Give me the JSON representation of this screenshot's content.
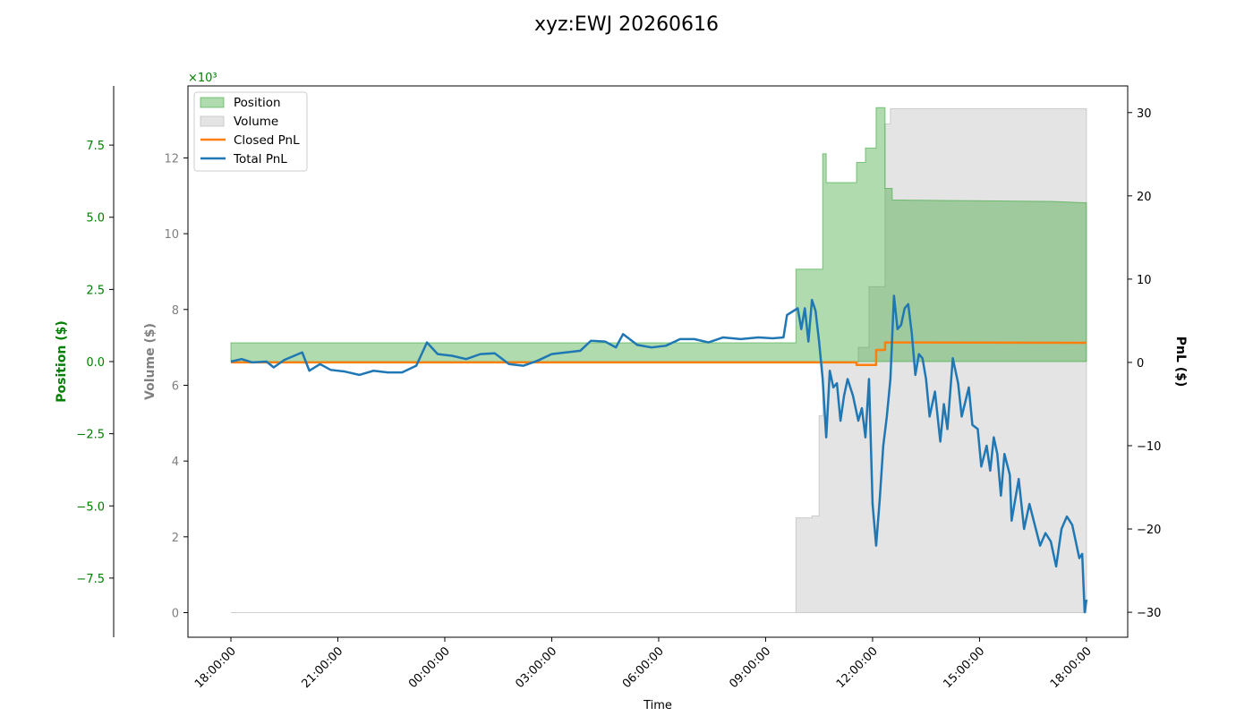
{
  "title": "xyz:EWJ 20260616",
  "colors": {
    "position": "#008000",
    "position_fill": "#2ca02c",
    "volume": "#808080",
    "volume_fill": "#bbbbbb",
    "closed_pnl": "#ff7f0e",
    "total_pnl": "#1f77b4"
  },
  "chart_data": {
    "type": "area",
    "xlabel": "Time",
    "x_ticks": [
      "18:00:00",
      "21:00:00",
      "00:00:00",
      "03:00:00",
      "06:00:00",
      "09:00:00",
      "12:00:00",
      "15:00:00",
      "18:00:00"
    ],
    "x_range_hours": [
      -1.2,
      25.2
    ],
    "legend": {
      "placement": "top-left",
      "entries": [
        "Position",
        "Volume",
        "Closed PnL",
        "Total PnL"
      ]
    },
    "axes": {
      "position": {
        "label": "Position ($)",
        "multiplier": "×10³",
        "range": [
          -9.55,
          9.55
        ],
        "ticks": [
          -7.5,
          -5.0,
          -2.5,
          0.0,
          2.5,
          5.0,
          7.5
        ],
        "tick_labels": [
          "−7.5",
          "−5.0",
          "−2.5",
          "0.0",
          "2.5",
          "5.0",
          "7.5"
        ]
      },
      "volume": {
        "label": "Volume ($)",
        "multiplier": "×10³",
        "range": [
          -0.65,
          13.9
        ],
        "ticks": [
          0,
          2,
          4,
          6,
          8,
          10,
          12
        ],
        "tick_labels": [
          "0",
          "2",
          "4",
          "6",
          "8",
          "10",
          "12"
        ]
      },
      "pnl": {
        "label": "PnL ($)",
        "range": [
          -33.0,
          33.2
        ],
        "ticks": [
          -30,
          -20,
          -10,
          0,
          10,
          20,
          30
        ],
        "tick_labels": [
          "−30",
          "−20",
          "−10",
          "0",
          "10",
          "20",
          "30"
        ]
      }
    },
    "series": [
      {
        "name": "Position",
        "kind": "step-area",
        "axis": "position",
        "points": [
          [
            0.0,
            0.65
          ],
          [
            15.85,
            0.65
          ],
          [
            15.85,
            3.2
          ],
          [
            16.6,
            3.2
          ],
          [
            16.6,
            7.2
          ],
          [
            16.7,
            7.2
          ],
          [
            16.7,
            6.2
          ],
          [
            17.55,
            6.2
          ],
          [
            17.55,
            6.9
          ],
          [
            17.8,
            6.9
          ],
          [
            17.8,
            7.4
          ],
          [
            18.1,
            7.4
          ],
          [
            18.1,
            8.8
          ],
          [
            18.35,
            8.8
          ],
          [
            18.35,
            6.0
          ],
          [
            18.55,
            6.0
          ],
          [
            18.55,
            5.6
          ],
          [
            23.0,
            5.55
          ],
          [
            24.0,
            5.5
          ],
          [
            24.0,
            0.0
          ]
        ]
      },
      {
        "name": "Volume",
        "kind": "step-area",
        "axis": "volume",
        "points": [
          [
            0.0,
            0.0
          ],
          [
            15.85,
            0.0
          ],
          [
            15.85,
            2.5
          ],
          [
            16.3,
            2.5
          ],
          [
            16.3,
            2.55
          ],
          [
            16.5,
            2.55
          ],
          [
            16.5,
            5.2
          ],
          [
            16.6,
            5.2
          ],
          [
            16.6,
            6.6
          ],
          [
            17.6,
            6.6
          ],
          [
            17.6,
            7.0
          ],
          [
            17.9,
            7.0
          ],
          [
            17.9,
            8.6
          ],
          [
            18.35,
            8.6
          ],
          [
            18.35,
            12.9
          ],
          [
            18.5,
            12.9
          ],
          [
            18.5,
            13.3
          ],
          [
            24.0,
            13.3
          ],
          [
            24.0,
            0.0
          ]
        ]
      },
      {
        "name": "Closed PnL",
        "kind": "line",
        "axis": "pnl",
        "points": [
          [
            0.0,
            0.0
          ],
          [
            17.55,
            0.0
          ],
          [
            17.55,
            -0.3
          ],
          [
            18.1,
            -0.3
          ],
          [
            18.1,
            1.5
          ],
          [
            18.35,
            1.5
          ],
          [
            18.35,
            2.4
          ],
          [
            19.5,
            2.4
          ],
          [
            24.0,
            2.35
          ]
        ]
      },
      {
        "name": "Total PnL",
        "kind": "line",
        "axis": "pnl",
        "points": [
          [
            0.0,
            0.1
          ],
          [
            0.3,
            0.4
          ],
          [
            0.6,
            0.0
          ],
          [
            1.0,
            0.1
          ],
          [
            1.2,
            -0.6
          ],
          [
            1.5,
            0.3
          ],
          [
            2.0,
            1.2
          ],
          [
            2.2,
            -1.0
          ],
          [
            2.5,
            -0.2
          ],
          [
            2.8,
            -0.9
          ],
          [
            3.2,
            -1.1
          ],
          [
            3.6,
            -1.5
          ],
          [
            4.0,
            -1.0
          ],
          [
            4.4,
            -1.2
          ],
          [
            4.8,
            -1.2
          ],
          [
            5.2,
            -0.4
          ],
          [
            5.5,
            2.4
          ],
          [
            5.8,
            1.0
          ],
          [
            6.2,
            0.8
          ],
          [
            6.6,
            0.4
          ],
          [
            7.0,
            1.0
          ],
          [
            7.4,
            1.1
          ],
          [
            7.8,
            -0.2
          ],
          [
            8.2,
            -0.4
          ],
          [
            8.6,
            0.2
          ],
          [
            9.0,
            1.0
          ],
          [
            9.4,
            1.2
          ],
          [
            9.8,
            1.4
          ],
          [
            10.1,
            2.6
          ],
          [
            10.5,
            2.5
          ],
          [
            10.8,
            1.8
          ],
          [
            11.0,
            3.4
          ],
          [
            11.4,
            2.1
          ],
          [
            11.8,
            1.8
          ],
          [
            12.2,
            2.0
          ],
          [
            12.6,
            2.8
          ],
          [
            13.0,
            2.8
          ],
          [
            13.4,
            2.4
          ],
          [
            13.8,
            3.0
          ],
          [
            14.3,
            2.8
          ],
          [
            14.8,
            3.0
          ],
          [
            15.2,
            2.9
          ],
          [
            15.5,
            3.0
          ],
          [
            15.6,
            5.7
          ],
          [
            15.9,
            6.5
          ],
          [
            16.0,
            4.0
          ],
          [
            16.1,
            6.5
          ],
          [
            16.2,
            2.5
          ],
          [
            16.3,
            7.5
          ],
          [
            16.4,
            6.2
          ],
          [
            16.5,
            2.5
          ],
          [
            16.6,
            -2.0
          ],
          [
            16.7,
            -9.0
          ],
          [
            16.8,
            -1.0
          ],
          [
            16.9,
            -3.0
          ],
          [
            17.0,
            -2.5
          ],
          [
            17.1,
            -7.0
          ],
          [
            17.2,
            -4.0
          ],
          [
            17.3,
            -2.0
          ],
          [
            17.45,
            -4.0
          ],
          [
            17.6,
            -7.0
          ],
          [
            17.7,
            -5.5
          ],
          [
            17.8,
            -9.0
          ],
          [
            17.9,
            -2.0
          ],
          [
            18.0,
            -17.0
          ],
          [
            18.1,
            -22.0
          ],
          [
            18.2,
            -16.5
          ],
          [
            18.3,
            -10.0
          ],
          [
            18.4,
            -6.5
          ],
          [
            18.5,
            -2.0
          ],
          [
            18.6,
            8.0
          ],
          [
            18.7,
            4.0
          ],
          [
            18.8,
            4.5
          ],
          [
            18.9,
            6.5
          ],
          [
            19.0,
            7.0
          ],
          [
            19.1,
            3.5
          ],
          [
            19.2,
            -1.5
          ],
          [
            19.3,
            1.0
          ],
          [
            19.4,
            0.5
          ],
          [
            19.5,
            -2.0
          ],
          [
            19.6,
            -6.5
          ],
          [
            19.75,
            -3.5
          ],
          [
            19.9,
            -9.5
          ],
          [
            20.0,
            -5.0
          ],
          [
            20.1,
            -8.0
          ],
          [
            20.25,
            0.5
          ],
          [
            20.4,
            -2.5
          ],
          [
            20.5,
            -6.5
          ],
          [
            20.7,
            -3.0
          ],
          [
            20.8,
            -7.5
          ],
          [
            20.95,
            -8.0
          ],
          [
            21.05,
            -12.5
          ],
          [
            21.2,
            -10.0
          ],
          [
            21.3,
            -13.0
          ],
          [
            21.4,
            -9.0
          ],
          [
            21.5,
            -11.0
          ],
          [
            21.6,
            -16.0
          ],
          [
            21.7,
            -11.0
          ],
          [
            21.85,
            -13.5
          ],
          [
            21.9,
            -19.0
          ],
          [
            22.1,
            -14.0
          ],
          [
            22.25,
            -20.0
          ],
          [
            22.4,
            -17.0
          ],
          [
            22.55,
            -19.5
          ],
          [
            22.7,
            -22.0
          ],
          [
            22.85,
            -20.5
          ],
          [
            23.0,
            -21.5
          ],
          [
            23.15,
            -24.5
          ],
          [
            23.3,
            -20.0
          ],
          [
            23.45,
            -18.5
          ],
          [
            23.6,
            -19.5
          ],
          [
            23.8,
            -23.5
          ],
          [
            23.88,
            -23.0
          ],
          [
            23.92,
            -27.0
          ],
          [
            23.95,
            -30.0
          ],
          [
            24.0,
            -28.5
          ]
        ]
      }
    ]
  }
}
